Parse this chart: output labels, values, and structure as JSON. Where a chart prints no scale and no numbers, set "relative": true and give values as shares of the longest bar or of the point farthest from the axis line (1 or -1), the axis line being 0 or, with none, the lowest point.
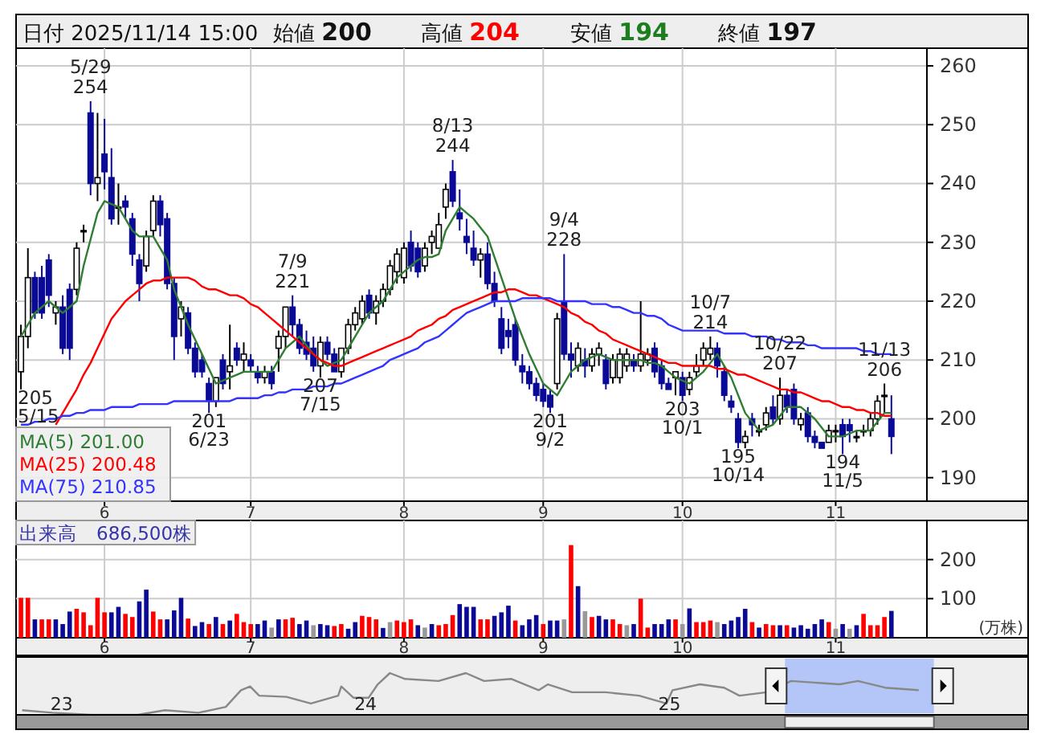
{
  "chart_data": [
    {
      "type": "candlestick",
      "title": "日付 2025/11/14 15:00",
      "annotations": [
        "始値 200",
        "高値 204",
        "安値 194",
        "終値 197",
        "205\n5/15",
        "5/29\n254",
        "201\n6/23",
        "7/9\n221",
        "207\n7/15",
        "8/13\n244",
        "201\n9/2",
        "9/4\n228",
        "203\n10/1",
        "10/7\n214",
        "195\n10/14",
        "10/22\n207",
        "194\n11/5",
        "11/13\n206"
      ],
      "categories": [
        null,
        null,
        null,
        null,
        null,
        null,
        null,
        null,
        null,
        null,
        null,
        null,
        "6",
        null,
        null,
        null,
        null,
        null,
        null,
        null,
        null,
        null,
        null,
        null,
        null,
        null,
        null,
        null,
        null,
        null,
        null,
        null,
        null,
        "7",
        null,
        null,
        null,
        null,
        null,
        null,
        null,
        null,
        null,
        null,
        null,
        null,
        null,
        null,
        null,
        null,
        null,
        null,
        null,
        null,
        null,
        "8",
        null,
        null,
        null,
        null,
        null,
        null,
        null,
        null,
        null,
        null,
        null,
        null,
        null,
        null,
        null,
        null,
        null,
        null,
        null,
        "9",
        null,
        null,
        null,
        null,
        null,
        null,
        null,
        null,
        null,
        null,
        null,
        null,
        null,
        null,
        null,
        null,
        null,
        null,
        null,
        "10",
        null,
        null,
        null,
        null,
        null,
        null,
        null,
        null,
        null,
        null,
        null,
        null,
        null,
        null,
        null,
        null,
        null,
        null,
        null,
        null,
        null,
        "11",
        null,
        null,
        null,
        null,
        null,
        null,
        null,
        null
      ],
      "ohlc": [
        [
          208,
          216,
          205,
          214
        ],
        [
          214,
          229,
          212,
          224
        ],
        [
          224,
          225,
          217,
          218
        ],
        [
          224,
          226,
          217,
          218
        ],
        [
          227,
          228,
          219,
          221
        ],
        [
          218,
          220,
          216,
          219
        ],
        [
          219,
          221,
          211,
          212
        ],
        [
          222,
          223,
          210,
          212
        ],
        [
          222,
          230,
          221,
          229
        ],
        [
          232,
          233,
          230,
          232
        ],
        [
          252,
          254,
          238,
          240
        ],
        [
          240,
          252,
          237,
          241
        ],
        [
          245,
          251,
          239,
          242
        ],
        [
          241,
          246,
          233,
          234
        ],
        [
          236,
          240,
          233,
          236
        ],
        [
          237,
          238,
          234,
          236
        ],
        [
          234,
          235,
          226,
          228
        ],
        [
          227,
          228,
          220,
          223
        ],
        [
          226,
          232,
          225,
          231
        ],
        [
          232,
          238,
          231,
          237
        ],
        [
          237,
          238,
          231,
          233
        ],
        [
          234,
          235,
          222,
          223
        ],
        [
          223,
          224,
          210,
          214
        ],
        [
          217,
          220,
          214,
          219
        ],
        [
          218,
          219,
          211,
          212
        ],
        [
          212,
          213,
          207,
          208
        ],
        [
          210,
          211,
          207,
          208
        ],
        [
          206,
          207,
          201,
          203
        ],
        [
          203,
          207,
          202,
          207
        ],
        [
          210,
          211,
          205,
          206
        ],
        [
          208,
          216,
          205,
          209
        ],
        [
          212,
          213,
          209,
          210
        ],
        [
          210,
          213,
          208,
          211
        ],
        [
          210,
          211,
          208,
          209
        ],
        [
          208,
          209,
          206,
          207
        ],
        [
          207,
          209,
          206,
          208
        ],
        [
          208,
          209,
          205,
          206
        ],
        [
          212,
          215,
          208,
          214
        ],
        [
          214,
          219,
          212,
          219
        ],
        [
          219,
          221,
          214,
          216
        ],
        [
          216,
          217,
          211,
          212
        ],
        [
          213,
          215,
          210,
          211
        ],
        [
          212,
          214,
          208,
          209
        ],
        [
          209,
          214,
          207,
          213
        ],
        [
          213,
          214,
          210,
          211
        ],
        [
          211,
          212,
          208,
          208
        ],
        [
          208,
          212,
          207,
          212
        ],
        [
          212,
          217,
          211,
          216
        ],
        [
          216,
          219,
          215,
          218
        ],
        [
          217,
          221,
          216,
          220
        ],
        [
          221,
          222,
          217,
          218
        ],
        [
          218,
          221,
          216,
          220
        ],
        [
          220,
          223,
          219,
          222
        ],
        [
          222,
          227,
          221,
          226
        ],
        [
          225,
          229,
          223,
          228
        ],
        [
          224,
          230,
          223,
          229
        ],
        [
          230,
          232,
          225,
          226
        ],
        [
          229,
          230,
          224,
          225
        ],
        [
          226,
          230,
          225,
          229
        ],
        [
          230,
          232,
          228,
          231
        ],
        [
          229,
          235,
          229,
          233
        ],
        [
          236,
          240,
          234,
          239
        ],
        [
          242,
          244,
          236,
          237
        ],
        [
          235,
          239,
          232,
          234
        ],
        [
          231,
          234,
          228,
          230
        ],
        [
          229,
          232,
          226,
          227
        ],
        [
          227,
          229,
          224,
          228
        ],
        [
          228,
          230,
          222,
          223
        ],
        [
          223,
          225,
          219,
          220
        ],
        [
          217,
          219,
          211,
          212
        ],
        [
          215,
          217,
          212,
          214
        ],
        [
          216,
          217,
          209,
          210
        ],
        [
          209,
          211,
          206,
          208
        ],
        [
          208,
          209,
          205,
          206
        ],
        [
          206,
          207,
          203,
          204
        ],
        [
          205,
          206,
          202,
          203
        ],
        [
          204,
          205,
          201,
          202
        ],
        [
          206,
          218,
          205,
          217
        ],
        [
          220,
          228,
          210,
          211
        ],
        [
          211,
          213,
          207,
          210
        ],
        [
          209,
          213,
          208,
          212
        ],
        [
          210,
          212,
          207,
          209
        ],
        [
          209,
          212,
          208,
          211
        ],
        [
          211,
          213,
          209,
          212
        ],
        [
          210,
          211,
          205,
          206
        ],
        [
          207,
          211,
          206,
          210
        ],
        [
          207,
          212,
          206,
          211
        ],
        [
          209,
          212,
          208,
          211
        ],
        [
          210,
          211,
          208,
          209
        ],
        [
          209,
          220,
          208,
          211
        ],
        [
          210,
          212,
          209,
          211
        ],
        [
          212,
          213,
          207,
          208
        ],
        [
          209,
          210,
          205,
          206
        ],
        [
          206,
          207,
          205,
          205
        ],
        [
          207,
          208,
          204,
          208
        ],
        [
          207,
          208,
          203,
          204
        ],
        [
          205,
          208,
          204,
          207
        ],
        [
          208,
          211,
          207,
          209
        ],
        [
          210,
          213,
          209,
          212
        ],
        [
          211,
          214,
          210,
          212
        ],
        [
          212,
          213,
          207,
          209
        ],
        [
          208,
          209,
          203,
          204
        ],
        [
          203,
          204,
          201,
          202
        ],
        [
          200,
          201,
          195,
          196
        ],
        [
          196,
          198,
          195,
          197
        ],
        [
          200,
          201,
          197,
          199
        ],
        [
          198,
          199,
          197,
          198
        ],
        [
          199,
          202,
          198,
          201
        ],
        [
          202,
          204,
          199,
          200
        ],
        [
          200,
          207,
          199,
          204
        ],
        [
          204,
          205,
          201,
          202
        ],
        [
          205,
          206,
          199,
          200
        ],
        [
          199,
          201,
          198,
          200
        ],
        [
          201,
          202,
          196,
          197
        ],
        [
          197,
          198,
          195,
          196
        ],
        [
          196,
          196,
          195,
          195
        ],
        [
          196,
          199,
          196,
          198
        ],
        [
          198,
          199,
          196,
          198
        ],
        [
          199,
          200,
          194,
          197
        ],
        [
          199,
          200,
          196,
          198
        ],
        [
          197,
          198,
          196,
          197
        ],
        [
          198,
          199,
          197,
          198
        ],
        [
          198,
          201,
          197,
          200
        ],
        [
          200,
          204,
          199,
          203
        ],
        [
          204,
          206,
          201,
          204
        ],
        [
          200,
          204,
          194,
          197
        ]
      ],
      "series": [
        {
          "type": "line",
          "name": "MA(5) 201.00",
          "color": "#2e7d32",
          "values": [
            214,
            216,
            218,
            219,
            220,
            219,
            218,
            219,
            220,
            226,
            230.5,
            235,
            237,
            236.5,
            236,
            234,
            232,
            231,
            231,
            231,
            229,
            227,
            222,
            219,
            216,
            213.5,
            211,
            208.5,
            206,
            206.5,
            207,
            207.5,
            208,
            208,
            208,
            208,
            208,
            210,
            212,
            213,
            214,
            212.5,
            211,
            210,
            209,
            209.5,
            210,
            212,
            214,
            216,
            218,
            219,
            220,
            222,
            224,
            225,
            226,
            227,
            227.5,
            227.5,
            228,
            232,
            234,
            236,
            235,
            234,
            232.5,
            231,
            227.5,
            224,
            220.5,
            217,
            214,
            211,
            208.5,
            206,
            205,
            204,
            206,
            208,
            209,
            210,
            210.5,
            211,
            210.5,
            210,
            210,
            210,
            210,
            210,
            209.5,
            209.5,
            209,
            208,
            207,
            206.5,
            206,
            207,
            208,
            209.5,
            211,
            209,
            207,
            204,
            201,
            199.5,
            198,
            198.5,
            199,
            200.5,
            202,
            202,
            202,
            201,
            200,
            198.5,
            197,
            197,
            197,
            197.5,
            198,
            198,
            198,
            199.5,
            201,
            201
          ]
        },
        {
          "type": "line",
          "name": "MA(25) 200.48",
          "color": "#ff0000",
          "values": [
            null,
            null,
            null,
            null,
            null,
            199,
            201,
            203,
            205,
            207.5,
            209.5,
            212,
            214.5,
            217,
            218.5,
            220,
            221,
            222,
            223,
            223.5,
            223.5,
            224,
            224,
            224,
            224,
            223.5,
            222.5,
            222,
            222,
            221.5,
            221,
            221,
            220.5,
            219.5,
            219,
            218,
            217,
            216,
            215,
            214,
            213,
            212,
            211,
            210,
            209.5,
            209,
            209,
            209.5,
            210,
            210.5,
            211,
            211.5,
            212,
            212.5,
            213,
            213.5,
            214,
            215,
            215.5,
            216,
            217,
            217.5,
            218.5,
            219,
            219.5,
            220,
            220.5,
            221,
            221.5,
            221.5,
            222,
            222,
            221.5,
            221,
            221,
            220.5,
            220,
            219.5,
            219,
            218,
            217.5,
            216.5,
            216,
            215,
            214.5,
            213.5,
            213,
            212.5,
            212,
            211.5,
            211,
            210.5,
            210,
            209.5,
            209.5,
            209,
            209,
            209,
            209,
            209,
            208.5,
            208.5,
            208,
            207.5,
            207.5,
            207,
            206.5,
            206,
            205.5,
            205,
            205,
            204.5,
            204.5,
            204,
            203.5,
            203,
            203,
            202.5,
            202,
            202,
            201.5,
            201.5,
            201,
            201,
            200.5,
            200.5
          ]
        },
        {
          "type": "line",
          "name": "MA(75) 210.85",
          "color": "#3333ff",
          "values": [
            199,
            199,
            199.5,
            199.5,
            200,
            200,
            200.5,
            200.5,
            201,
            201,
            201.5,
            201.5,
            201.5,
            202,
            202,
            202,
            202,
            202.5,
            202.5,
            202.5,
            202.5,
            202.5,
            203,
            203,
            203,
            203,
            203,
            203,
            203,
            203,
            203,
            203.5,
            203.5,
            203.5,
            203.5,
            204,
            204,
            204.5,
            204.5,
            205,
            205,
            205,
            205.5,
            205.5,
            205.5,
            206,
            206,
            206.5,
            207,
            207.5,
            208,
            208.5,
            209,
            210,
            210.5,
            211,
            211.5,
            212,
            213,
            213.5,
            214,
            215,
            216,
            217,
            218,
            218.5,
            219,
            219.5,
            220,
            220,
            220,
            220,
            220.5,
            220.5,
            220.5,
            220.5,
            220.5,
            220,
            220,
            220,
            220,
            220,
            219.5,
            219.5,
            219.5,
            219,
            219,
            218.5,
            218,
            218,
            217.5,
            217.5,
            217,
            216,
            215.5,
            215,
            215,
            215,
            215,
            215,
            215,
            214.5,
            214.5,
            214.5,
            214.5,
            214,
            214,
            214,
            213.5,
            213.5,
            213,
            213,
            213,
            212.5,
            212.5,
            212,
            212,
            212,
            212,
            212,
            212,
            211.5,
            211.5,
            211,
            211,
            211
          ]
        }
      ],
      "ylim": [
        186,
        263
      ],
      "yticks": [
        190,
        200,
        210,
        220,
        230,
        240,
        250,
        260
      ],
      "grid": true,
      "legend": "bottom left"
    },
    {
      "type": "bar",
      "annotations": [
        "出来高　686,500株",
        "(万株)"
      ],
      "categories": [
        null,
        null,
        null,
        null,
        null,
        null,
        null,
        null,
        null,
        null,
        null,
        null,
        "6",
        null,
        null,
        null,
        null,
        null,
        null,
        null,
        null,
        null,
        null,
        null,
        null,
        null,
        null,
        null,
        null,
        null,
        null,
        null,
        null,
        "7",
        null,
        null,
        null,
        null,
        null,
        null,
        null,
        null,
        null,
        null,
        null,
        null,
        null,
        null,
        null,
        null,
        null,
        null,
        null,
        null,
        null,
        "8",
        null,
        null,
        null,
        null,
        null,
        null,
        null,
        null,
        null,
        null,
        null,
        null,
        null,
        null,
        null,
        null,
        null,
        null,
        null,
        "9",
        null,
        null,
        null,
        null,
        null,
        null,
        null,
        null,
        null,
        null,
        null,
        null,
        null,
        null,
        null,
        null,
        null,
        null,
        null,
        "10",
        null,
        null,
        null,
        null,
        null,
        null,
        null,
        null,
        null,
        null,
        null,
        null,
        null,
        null,
        null,
        null,
        null,
        null,
        null,
        null,
        null,
        "11",
        null,
        null,
        null,
        null,
        null,
        null,
        null,
        null
      ],
      "values": [
        102,
        102,
        47,
        47,
        47,
        47,
        35,
        67,
        74,
        65,
        32,
        102,
        65,
        65,
        79,
        61,
        53,
        93,
        123,
        67,
        47,
        47,
        70,
        102,
        49,
        30,
        40,
        35,
        53,
        35,
        44,
        61,
        40,
        35,
        35,
        44,
        26,
        47,
        47,
        51,
        35,
        44,
        32,
        35,
        32,
        30,
        35,
        23,
        40,
        56,
        53,
        47,
        25,
        40,
        44,
        40,
        47,
        32,
        26,
        35,
        32,
        35,
        58,
        86,
        79,
        79,
        47,
        47,
        56,
        65,
        82,
        44,
        32,
        47,
        58,
        35,
        44,
        44,
        47,
        237,
        132,
        68,
        53,
        56,
        47,
        47,
        35,
        32,
        35,
        100,
        26,
        35,
        35,
        47,
        47,
        35,
        75,
        40,
        40,
        44,
        40,
        35,
        44,
        53,
        74,
        40,
        26,
        35,
        32,
        32,
        32,
        26,
        32,
        23,
        35,
        47,
        40,
        23,
        35,
        23,
        32,
        61,
        32,
        32,
        53,
        68.65
      ],
      "colors": [
        "#ff0000",
        "#ff0000",
        "#0a0a96",
        "#ff0000",
        "#ff0000",
        "#0a0a96",
        "#0a0a96",
        "#0a0a96",
        "#ff0000",
        "#ff0000",
        "#ff0000",
        "#ff0000",
        "#ff0000",
        "#0a0a96",
        "#0a0a96",
        "#ff0000",
        "#ff0000",
        "#0a0a96",
        "#0a0a96",
        "#ff0000",
        "#ff0000",
        "#0a0a96",
        "#0a0a96",
        "#0a0a96",
        "#ff0000",
        "#0a0a96",
        "#0a0a96",
        "#ff0000",
        "#0a0a96",
        "#ff0000",
        "#0a0a96",
        "#ff0000",
        "#ff0000",
        "#ff0000",
        "#0a0a96",
        "#0a0a96",
        "#999999",
        "#0a0a96",
        "#ff0000",
        "#ff0000",
        "#0a0a96",
        "#0a0a96",
        "#999999",
        "#0a0a96",
        "#0a0a96",
        "#ff0000",
        "#ff0000",
        "#0a0a96",
        "#0a0a96",
        "#ff0000",
        "#ff0000",
        "#ff0000",
        "#0a0a96",
        "#999999",
        "#ff0000",
        "#ff0000",
        "#ff0000",
        "#0a0a96",
        "#999999",
        "#0a0a96",
        "#ff0000",
        "#ff0000",
        "#ff0000",
        "#0a0a96",
        "#0a0a96",
        "#0a0a96",
        "#ff0000",
        "#ff0000",
        "#0a0a96",
        "#0a0a96",
        "#0a0a96",
        "#ff0000",
        "#0a0a96",
        "#0a0a96",
        "#0a0a96",
        "#ff0000",
        "#0a0a96",
        "#0a0a96",
        "#999999",
        "#ff0000",
        "#0a0a96",
        "#999999",
        "#ff0000",
        "#0a0a96",
        "#0a0a96",
        "#ff0000",
        "#ff0000",
        "#999999",
        "#0a0a96",
        "#ff0000",
        "#ff0000",
        "#0a0a96",
        "#0a0a96",
        "#0a0a96",
        "#ff0000",
        "#999999",
        "#0a0a96",
        "#ff0000",
        "#ff0000",
        "#ff0000",
        "#999999",
        "#0a0a96",
        "#0a0a96",
        "#0a0a96",
        "#0a0a96",
        "#ff0000",
        "#0a0a96",
        "#ff0000",
        "#ff0000",
        "#0a0a96",
        "#ff0000",
        "#0a0a96",
        "#0a0a96",
        "#0a0a96",
        "#0a0a96",
        "#0a0a96",
        "#ff0000",
        "#999999",
        "#0a0a96",
        "#999999",
        "#0a0a96",
        "#ff0000",
        "#ff0000",
        "#ff0000",
        "#ff0000",
        "#0a0a96"
      ],
      "ylim": [
        0,
        300
      ],
      "yticks": [
        100,
        200
      ],
      "grid": true
    },
    {
      "type": "line",
      "relative": true,
      "series": [
        {
          "color": "#888888",
          "x": [
            2022.87,
            2022.97,
            2023.1,
            2023.25,
            2023.34,
            2023.45,
            2023.54,
            2023.59,
            2023.62,
            2023.65,
            2023.74,
            2023.82,
            2023.91,
            2023.92,
            2023.96,
            2024.01,
            2024.04,
            2024.08,
            2024.13,
            2024.24,
            2024.33,
            2024.39,
            2024.48,
            2024.57,
            2024.6,
            2024.68,
            2024.79,
            2024.9,
            2024.99,
            2025.01,
            2025.1,
            2025.18,
            2025.23,
            2025.32,
            2025.4,
            2025.56,
            2025.62,
            2025.71,
            2025.82
          ],
          "values": [
            0.11,
            0.05,
            0,
            0,
            0.11,
            0.05,
            0.19,
            0.59,
            0.68,
            0.46,
            0.43,
            0.27,
            0.46,
            0.68,
            0.41,
            0.41,
            0.73,
            1,
            0.86,
            0.81,
            1,
            0.81,
            0.86,
            0.59,
            0.73,
            0.54,
            0.54,
            0.46,
            0.27,
            0.59,
            0.73,
            0.65,
            0.46,
            0.54,
            0.81,
            0.73,
            0.81,
            0.65,
            0.59
          ]
        }
      ],
      "xlim": [
        2022.85,
        2026.18
      ],
      "xticks": [
        {
          "value": 2023,
          "label": "23"
        },
        {
          "value": 2024,
          "label": "24"
        },
        {
          "value": 2025,
          "label": "25"
        }
      ],
      "bands": [
        {
          "axis": "x",
          "from": 2025.38,
          "to": 2025.87,
          "color": "#b3c6f7"
        }
      ]
    }
  ]
}
